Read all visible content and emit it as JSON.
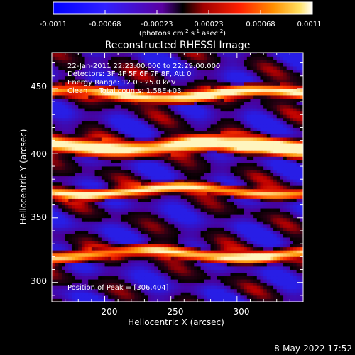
{
  "colorbar": {
    "tick_labels": [
      "-0.0011",
      "-0.00068",
      "-0.00023",
      "0.00023",
      "0.00068",
      "0.0011"
    ],
    "unit_main": "(photons cm",
    "unit_exp1": "-2",
    "unit_mid": " s",
    "unit_exp2": "-1",
    "unit_mid2": " asec",
    "unit_exp3": "-2",
    "unit_end": ")",
    "range": [
      -0.0011,
      0.0011
    ]
  },
  "chart_data": {
    "type": "heatmap",
    "title": "Reconstructed RHESSI Image",
    "xlabel": "Heliocentric X (arcsec)",
    "ylabel": "Heliocentric Y (arcsec)",
    "xlim": [
      160,
      350
    ],
    "ylim": [
      285,
      478
    ],
    "x_ticks": [
      "200",
      "250",
      "300"
    ],
    "y_ticks": [
      "300",
      "350",
      "400",
      "450"
    ],
    "x_tick_values": [
      200,
      250,
      300
    ],
    "y_tick_values": [
      300,
      350,
      400,
      450
    ],
    "info_lines": [
      "22-Jan-2011 22:23:00.000 to 22:29:00.000",
      "Detectors: 3F 4F 5F 6F 7F 8F, Att 0",
      "Energy Range: 12.0 - 25.0 keV",
      "Clean     Total counts: 1.58E+03"
    ],
    "peak_label": "Position of Peak = [306,404]",
    "peak": [
      306,
      404
    ]
  },
  "footer": {
    "timestamp": "8-May-2022 17:52"
  }
}
